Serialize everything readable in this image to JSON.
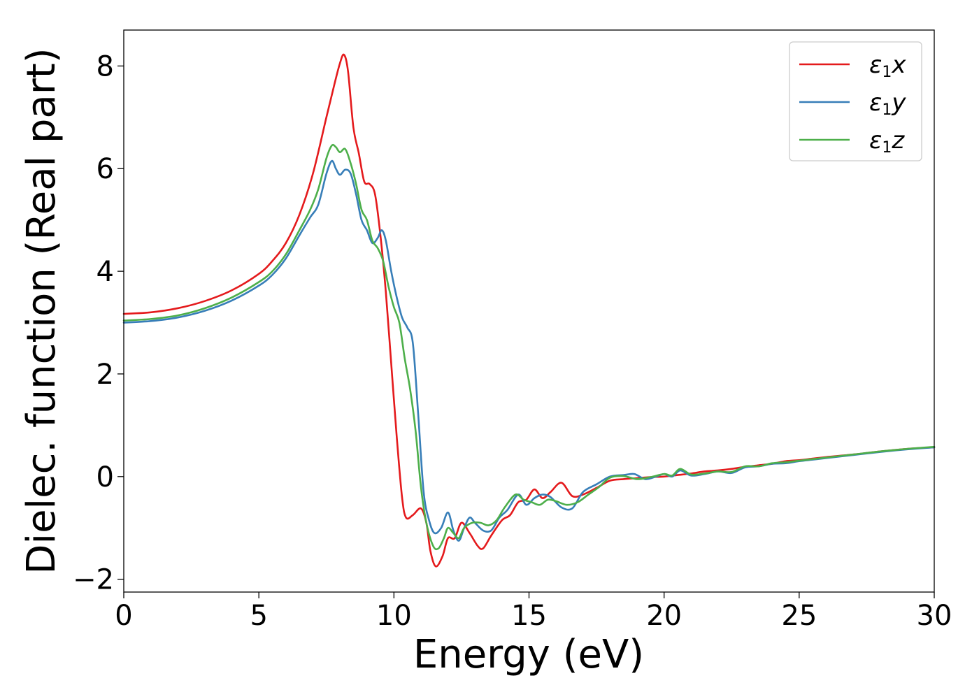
{
  "chart_data": {
    "type": "line",
    "xlabel": "Energy (eV)",
    "ylabel": "Dielec. function (Real part)",
    "xlim": [
      0,
      30
    ],
    "ylim": [
      -2.25,
      8.7
    ],
    "xticks": [
      0,
      5,
      10,
      15,
      20,
      25,
      30
    ],
    "yticks": [
      -2,
      0,
      2,
      4,
      6,
      8
    ],
    "xtick_labels": [
      "0",
      "5",
      "10",
      "15",
      "20",
      "25",
      "30"
    ],
    "ytick_labels": [
      "−2",
      "0",
      "2",
      "4",
      "6",
      "8"
    ],
    "grid": false,
    "legend_position": "top-right",
    "series": [
      {
        "name": "ε1x",
        "legend_symbol": "ε",
        "legend_sub": "1",
        "legend_var": "x",
        "color": "#e41a1c",
        "points": [
          [
            0,
            3.17
          ],
          [
            1,
            3.2
          ],
          [
            2,
            3.28
          ],
          [
            3,
            3.42
          ],
          [
            4,
            3.63
          ],
          [
            5,
            3.95
          ],
          [
            5.5,
            4.2
          ],
          [
            6,
            4.55
          ],
          [
            6.5,
            5.1
          ],
          [
            7,
            5.9
          ],
          [
            7.5,
            7.0
          ],
          [
            7.8,
            7.65
          ],
          [
            8.0,
            8.05
          ],
          [
            8.15,
            8.22
          ],
          [
            8.3,
            7.9
          ],
          [
            8.5,
            6.8
          ],
          [
            8.7,
            6.3
          ],
          [
            8.9,
            5.75
          ],
          [
            9.1,
            5.7
          ],
          [
            9.3,
            5.5
          ],
          [
            9.5,
            4.7
          ],
          [
            9.7,
            3.6
          ],
          [
            9.9,
            2.2
          ],
          [
            10.1,
            0.8
          ],
          [
            10.3,
            -0.4
          ],
          [
            10.45,
            -0.8
          ],
          [
            10.7,
            -0.75
          ],
          [
            11.0,
            -0.62
          ],
          [
            11.2,
            -0.9
          ],
          [
            11.35,
            -1.45
          ],
          [
            11.55,
            -1.75
          ],
          [
            11.8,
            -1.55
          ],
          [
            12.0,
            -1.2
          ],
          [
            12.25,
            -1.2
          ],
          [
            12.5,
            -0.9
          ],
          [
            12.8,
            -1.1
          ],
          [
            13.1,
            -1.35
          ],
          [
            13.3,
            -1.4
          ],
          [
            13.6,
            -1.15
          ],
          [
            14.0,
            -0.85
          ],
          [
            14.3,
            -0.75
          ],
          [
            14.6,
            -0.5
          ],
          [
            14.9,
            -0.45
          ],
          [
            15.2,
            -0.25
          ],
          [
            15.5,
            -0.42
          ],
          [
            15.8,
            -0.3
          ],
          [
            16.2,
            -0.12
          ],
          [
            16.6,
            -0.38
          ],
          [
            17.0,
            -0.35
          ],
          [
            17.5,
            -0.22
          ],
          [
            18.0,
            -0.08
          ],
          [
            18.5,
            -0.05
          ],
          [
            19.0,
            -0.03
          ],
          [
            19.5,
            -0.01
          ],
          [
            20.0,
            0.0
          ],
          [
            20.5,
            0.03
          ],
          [
            21.0,
            0.06
          ],
          [
            21.5,
            0.1
          ],
          [
            22.0,
            0.12
          ],
          [
            22.5,
            0.15
          ],
          [
            23.0,
            0.19
          ],
          [
            23.5,
            0.22
          ],
          [
            24.0,
            0.25
          ],
          [
            24.5,
            0.3
          ],
          [
            25.0,
            0.32
          ],
          [
            25.5,
            0.35
          ],
          [
            26.0,
            0.38
          ],
          [
            27.0,
            0.43
          ],
          [
            28.0,
            0.49
          ],
          [
            29.0,
            0.54
          ],
          [
            30.0,
            0.57
          ]
        ]
      },
      {
        "name": "ε1y",
        "legend_symbol": "ε",
        "legend_sub": "1",
        "legend_var": "y",
        "color": "#377eb8",
        "points": [
          [
            0,
            3.0
          ],
          [
            1,
            3.03
          ],
          [
            2,
            3.1
          ],
          [
            3,
            3.23
          ],
          [
            4,
            3.43
          ],
          [
            5,
            3.72
          ],
          [
            5.5,
            3.93
          ],
          [
            6,
            4.25
          ],
          [
            6.5,
            4.7
          ],
          [
            6.9,
            5.05
          ],
          [
            7.2,
            5.3
          ],
          [
            7.5,
            5.9
          ],
          [
            7.7,
            6.15
          ],
          [
            7.85,
            6.0
          ],
          [
            8.0,
            5.88
          ],
          [
            8.2,
            5.98
          ],
          [
            8.4,
            5.9
          ],
          [
            8.6,
            5.5
          ],
          [
            8.8,
            5.0
          ],
          [
            9.0,
            4.8
          ],
          [
            9.2,
            4.55
          ],
          [
            9.4,
            4.65
          ],
          [
            9.55,
            4.8
          ],
          [
            9.7,
            4.6
          ],
          [
            9.9,
            4.0
          ],
          [
            10.1,
            3.5
          ],
          [
            10.3,
            3.1
          ],
          [
            10.5,
            2.9
          ],
          [
            10.7,
            2.6
          ],
          [
            10.9,
            1.2
          ],
          [
            11.1,
            -0.3
          ],
          [
            11.3,
            -0.85
          ],
          [
            11.5,
            -1.1
          ],
          [
            11.75,
            -1.0
          ],
          [
            12.0,
            -0.7
          ],
          [
            12.2,
            -1.05
          ],
          [
            12.4,
            -1.25
          ],
          [
            12.6,
            -1.0
          ],
          [
            12.8,
            -0.8
          ],
          [
            13.0,
            -0.9
          ],
          [
            13.3,
            -1.05
          ],
          [
            13.6,
            -1.05
          ],
          [
            13.9,
            -0.8
          ],
          [
            14.2,
            -0.65
          ],
          [
            14.6,
            -0.35
          ],
          [
            14.9,
            -0.55
          ],
          [
            15.2,
            -0.42
          ],
          [
            15.5,
            -0.35
          ],
          [
            15.8,
            -0.4
          ],
          [
            16.2,
            -0.6
          ],
          [
            16.6,
            -0.62
          ],
          [
            17.0,
            -0.3
          ],
          [
            17.5,
            -0.15
          ],
          [
            18.0,
            0.0
          ],
          [
            18.5,
            0.03
          ],
          [
            18.9,
            0.05
          ],
          [
            19.3,
            -0.05
          ],
          [
            19.7,
            0.0
          ],
          [
            20.0,
            0.05
          ],
          [
            20.3,
            0.0
          ],
          [
            20.6,
            0.12
          ],
          [
            21.0,
            0.02
          ],
          [
            21.5,
            0.05
          ],
          [
            22.0,
            0.1
          ],
          [
            22.5,
            0.07
          ],
          [
            23.0,
            0.18
          ],
          [
            23.5,
            0.2
          ],
          [
            24.0,
            0.25
          ],
          [
            24.5,
            0.26
          ],
          [
            25.0,
            0.3
          ],
          [
            25.5,
            0.33
          ],
          [
            26.0,
            0.36
          ],
          [
            27.0,
            0.42
          ],
          [
            28.0,
            0.48
          ],
          [
            29.0,
            0.53
          ],
          [
            30.0,
            0.57
          ]
        ]
      },
      {
        "name": "ε1z",
        "legend_symbol": "ε",
        "legend_sub": "1",
        "legend_var": "z",
        "color": "#4daf4a",
        "points": [
          [
            0,
            3.04
          ],
          [
            1,
            3.07
          ],
          [
            2,
            3.14
          ],
          [
            3,
            3.28
          ],
          [
            4,
            3.49
          ],
          [
            5,
            3.79
          ],
          [
            5.5,
            4.0
          ],
          [
            6,
            4.33
          ],
          [
            6.5,
            4.8
          ],
          [
            6.9,
            5.2
          ],
          [
            7.2,
            5.6
          ],
          [
            7.5,
            6.2
          ],
          [
            7.7,
            6.45
          ],
          [
            7.85,
            6.42
          ],
          [
            8.0,
            6.32
          ],
          [
            8.2,
            6.38
          ],
          [
            8.4,
            6.1
          ],
          [
            8.6,
            5.7
          ],
          [
            8.8,
            5.2
          ],
          [
            9.0,
            5.0
          ],
          [
            9.2,
            4.6
          ],
          [
            9.4,
            4.45
          ],
          [
            9.6,
            4.2
          ],
          [
            9.8,
            3.7
          ],
          [
            10.0,
            3.3
          ],
          [
            10.2,
            3.0
          ],
          [
            10.4,
            2.3
          ],
          [
            10.6,
            1.7
          ],
          [
            10.8,
            0.9
          ],
          [
            11.0,
            -0.2
          ],
          [
            11.2,
            -0.9
          ],
          [
            11.45,
            -1.35
          ],
          [
            11.65,
            -1.4
          ],
          [
            11.85,
            -1.2
          ],
          [
            12.0,
            -1.0
          ],
          [
            12.2,
            -1.1
          ],
          [
            12.4,
            -1.2
          ],
          [
            12.6,
            -1.0
          ],
          [
            12.9,
            -0.9
          ],
          [
            13.2,
            -0.9
          ],
          [
            13.5,
            -0.95
          ],
          [
            13.8,
            -0.85
          ],
          [
            14.1,
            -0.6
          ],
          [
            14.5,
            -0.35
          ],
          [
            14.8,
            -0.45
          ],
          [
            15.1,
            -0.5
          ],
          [
            15.4,
            -0.55
          ],
          [
            15.7,
            -0.45
          ],
          [
            16.0,
            -0.48
          ],
          [
            16.4,
            -0.55
          ],
          [
            16.8,
            -0.5
          ],
          [
            17.2,
            -0.35
          ],
          [
            17.6,
            -0.2
          ],
          [
            18.0,
            -0.02
          ],
          [
            18.5,
            0.01
          ],
          [
            19.0,
            -0.05
          ],
          [
            19.5,
            -0.01
          ],
          [
            20.0,
            0.05
          ],
          [
            20.3,
            0.02
          ],
          [
            20.6,
            0.15
          ],
          [
            21.0,
            0.04
          ],
          [
            21.5,
            0.06
          ],
          [
            22.0,
            0.1
          ],
          [
            22.5,
            0.09
          ],
          [
            23.0,
            0.2
          ],
          [
            23.5,
            0.2
          ],
          [
            24.0,
            0.26
          ],
          [
            24.5,
            0.28
          ],
          [
            25.0,
            0.31
          ],
          [
            25.5,
            0.34
          ],
          [
            26.0,
            0.37
          ],
          [
            27.0,
            0.43
          ],
          [
            28.0,
            0.49
          ],
          [
            29.0,
            0.54
          ],
          [
            30.0,
            0.58
          ]
        ]
      }
    ]
  }
}
